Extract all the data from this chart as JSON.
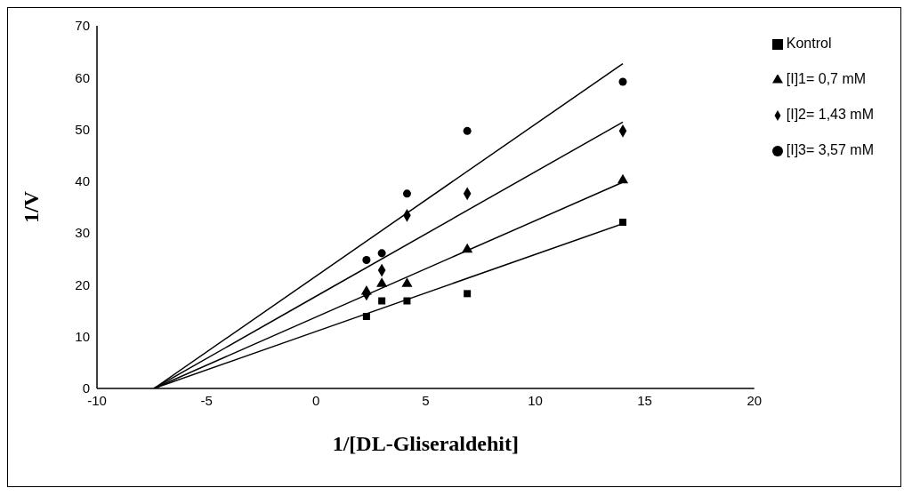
{
  "chart_data": {
    "type": "scatter",
    "xlabel": "1/[DL-Gliseraldehit]",
    "ylabel": "1/V",
    "x": [
      2.3,
      3.0,
      4.15,
      6.9,
      14.0
    ],
    "xlim": [
      -10,
      20
    ],
    "xticks": [
      -10,
      -5,
      0,
      5,
      10,
      15,
      20
    ],
    "ylim": [
      0,
      70
    ],
    "yticks": [
      0,
      10,
      20,
      30,
      40,
      50,
      60,
      70
    ],
    "grid": false,
    "legend": "top right",
    "series": [
      {
        "name": "Kontrol",
        "color": "#000000",
        "marker": "square",
        "values": [
          13.9,
          16.9,
          16.9,
          18.3,
          32.1
        ]
      },
      {
        "name": "[I]1= 0,7 mM",
        "color": "#000000",
        "marker": "triangle",
        "values": [
          18.7,
          20.2,
          20.2,
          26.8,
          40.2
        ]
      },
      {
        "name": "[I]2= 1,43 mM",
        "color": "#000000",
        "marker": "diamond",
        "values": [
          18.2,
          22.8,
          33.4,
          37.6,
          49.7
        ]
      },
      {
        "name": "[I]3= 3,57 mM",
        "color": "#000000",
        "marker": "circle",
        "values": [
          24.8,
          26.1,
          37.6,
          49.7,
          59.2
        ]
      },
      {
        "type": "line",
        "color": "#000000",
        "marker": "none",
        "x": [
          -7.4,
          0,
          14
        ],
        "values": [
          0,
          11.0,
          31.8
        ]
      },
      {
        "type": "line",
        "color": "#000000",
        "marker": "none",
        "x": [
          -7.4,
          0,
          14
        ],
        "values": [
          0,
          13.8,
          39.8
        ]
      },
      {
        "type": "line",
        "color": "#000000",
        "marker": "none",
        "x": [
          -7.4,
          0,
          14
        ],
        "values": [
          0,
          17.8,
          51.4
        ]
      },
      {
        "type": "line",
        "color": "#000000",
        "marker": "none",
        "x": [
          -7.4,
          0,
          14
        ],
        "values": [
          0,
          21.7,
          62.7
        ]
      }
    ]
  }
}
